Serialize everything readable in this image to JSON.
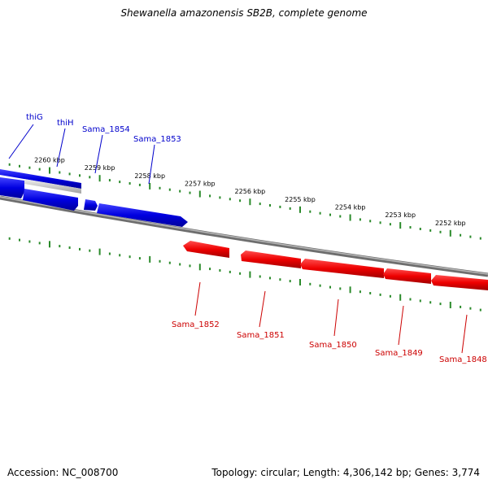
{
  "map": {
    "title": "Shewanella amazonensis SB2B, complete genome",
    "accession_label": "Accession: NC_008700",
    "summary_label": "Topology: circular; Length: 4,306,142 bp; Genes: 3,774",
    "colors": {
      "forward_gene": "#0000e0",
      "reverse_gene": "#ee0000",
      "backbone": "#808080",
      "ticks": "#2a8a2a",
      "scale_text": "#000000"
    },
    "scale_unit": "kbp",
    "scale_ticks": [
      {
        "label": "2260 kbp",
        "kbp": 2260
      },
      {
        "label": "2259 kbp",
        "kbp": 2259
      },
      {
        "label": "2258 kbp",
        "kbp": 2258
      },
      {
        "label": "2257 kbp",
        "kbp": 2257
      },
      {
        "label": "2256 kbp",
        "kbp": 2256
      },
      {
        "label": "2255 kbp",
        "kbp": 2255
      },
      {
        "label": "2254 kbp",
        "kbp": 2254
      },
      {
        "label": "2253 kbp",
        "kbp": 2253
      },
      {
        "label": "2252 kbp",
        "kbp": 2252
      }
    ],
    "forward_gene_labels": [
      "thiG",
      "thiH",
      "Sama_1854",
      "Sama_1853"
    ],
    "reverse_gene_labels": [
      "Sama_1852",
      "Sama_1851",
      "Sama_1850",
      "Sama_1849",
      "Sama_1848"
    ]
  }
}
